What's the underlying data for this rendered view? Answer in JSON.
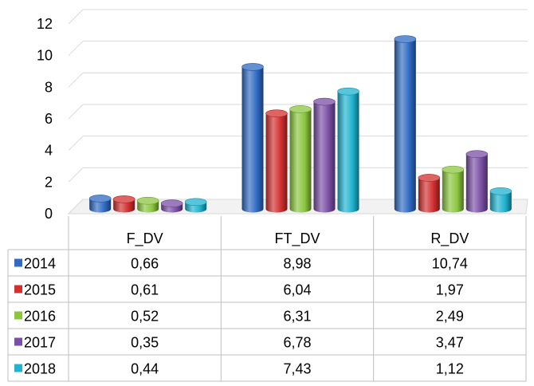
{
  "chart_data": {
    "type": "bar",
    "title": "",
    "xlabel": "",
    "ylabel": "",
    "ylim": [
      0,
      12
    ],
    "yticks": [
      0,
      2,
      4,
      6,
      8,
      10,
      12
    ],
    "grid": true,
    "legend": "in data table",
    "categories": [
      "F_DV",
      "FT_DV",
      "R_DV"
    ],
    "series": [
      {
        "name": "2014",
        "color": "#2f6bc4",
        "values": [
          0.66,
          8.98,
          10.74
        ],
        "labels": [
          "0,66",
          "8,98",
          "10,74"
        ]
      },
      {
        "name": "2015",
        "color": "#d32f2f",
        "values": [
          0.61,
          6.04,
          1.97
        ],
        "labels": [
          "0,61",
          "6,04",
          "1,97"
        ]
      },
      {
        "name": "2016",
        "color": "#8cc63f",
        "values": [
          0.52,
          6.31,
          2.49
        ],
        "labels": [
          "0,52",
          "6,31",
          "2,49"
        ]
      },
      {
        "name": "2017",
        "color": "#7b4fa6",
        "values": [
          0.35,
          6.78,
          3.47
        ],
        "labels": [
          "0,35",
          "6,78",
          "3,47"
        ]
      },
      {
        "name": "2018",
        "color": "#1fb3d1",
        "values": [
          0.44,
          7.43,
          1.12
        ],
        "labels": [
          "0,44",
          "7,43",
          "1,12"
        ]
      }
    ]
  }
}
